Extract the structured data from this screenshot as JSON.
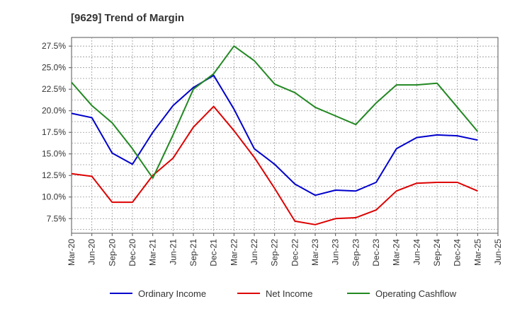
{
  "chart_data": {
    "type": "line",
    "title": "[9629]  Trend of Margin",
    "xlabel": "",
    "ylabel": "",
    "categories": [
      "Mar-20",
      "Jun-20",
      "Sep-20",
      "Dec-20",
      "Mar-21",
      "Jun-21",
      "Sep-21",
      "Dec-21",
      "Mar-22",
      "Jun-22",
      "Sep-22",
      "Dec-22",
      "Mar-23",
      "Jun-23",
      "Sep-23",
      "Dec-23",
      "Mar-24",
      "Jun-24",
      "Sep-24",
      "Dec-24",
      "Mar-25",
      "Jun-25"
    ],
    "ylim": [
      5.8,
      28.5
    ],
    "yticks": [
      7.5,
      10.0,
      12.5,
      15.0,
      17.5,
      20.0,
      22.5,
      25.0,
      27.5
    ],
    "ytick_labels": [
      "7.5%",
      "10.0%",
      "12.5%",
      "15.0%",
      "17.5%",
      "20.0%",
      "22.5%",
      "25.0%",
      "27.5%"
    ],
    "grid": true,
    "legend_position": "bottom",
    "series": [
      {
        "name": "Ordinary Income",
        "color": "#0000cc",
        "values": [
          19.7,
          19.2,
          15.1,
          13.8,
          17.5,
          20.6,
          22.7,
          24.1,
          20.2,
          15.6,
          13.8,
          11.5,
          10.2,
          10.8,
          10.7,
          11.7,
          15.6,
          16.9,
          17.2,
          17.1,
          16.6,
          null
        ]
      },
      {
        "name": "Net Income",
        "color": "#dd0000",
        "values": [
          12.7,
          12.4,
          9.4,
          9.4,
          12.5,
          14.5,
          18.1,
          20.5,
          17.7,
          14.6,
          11.0,
          7.2,
          6.8,
          7.5,
          7.6,
          8.5,
          10.7,
          11.6,
          11.7,
          11.7,
          10.7,
          null
        ]
      },
      {
        "name": "Operating Cashflow",
        "color": "#228822",
        "values": [
          23.3,
          20.6,
          18.6,
          15.6,
          12.2,
          17.2,
          22.5,
          24.3,
          27.5,
          25.8,
          23.1,
          22.1,
          20.4,
          19.4,
          18.4,
          20.9,
          23.0,
          23.0,
          23.2,
          20.4,
          17.6,
          null
        ]
      }
    ]
  }
}
